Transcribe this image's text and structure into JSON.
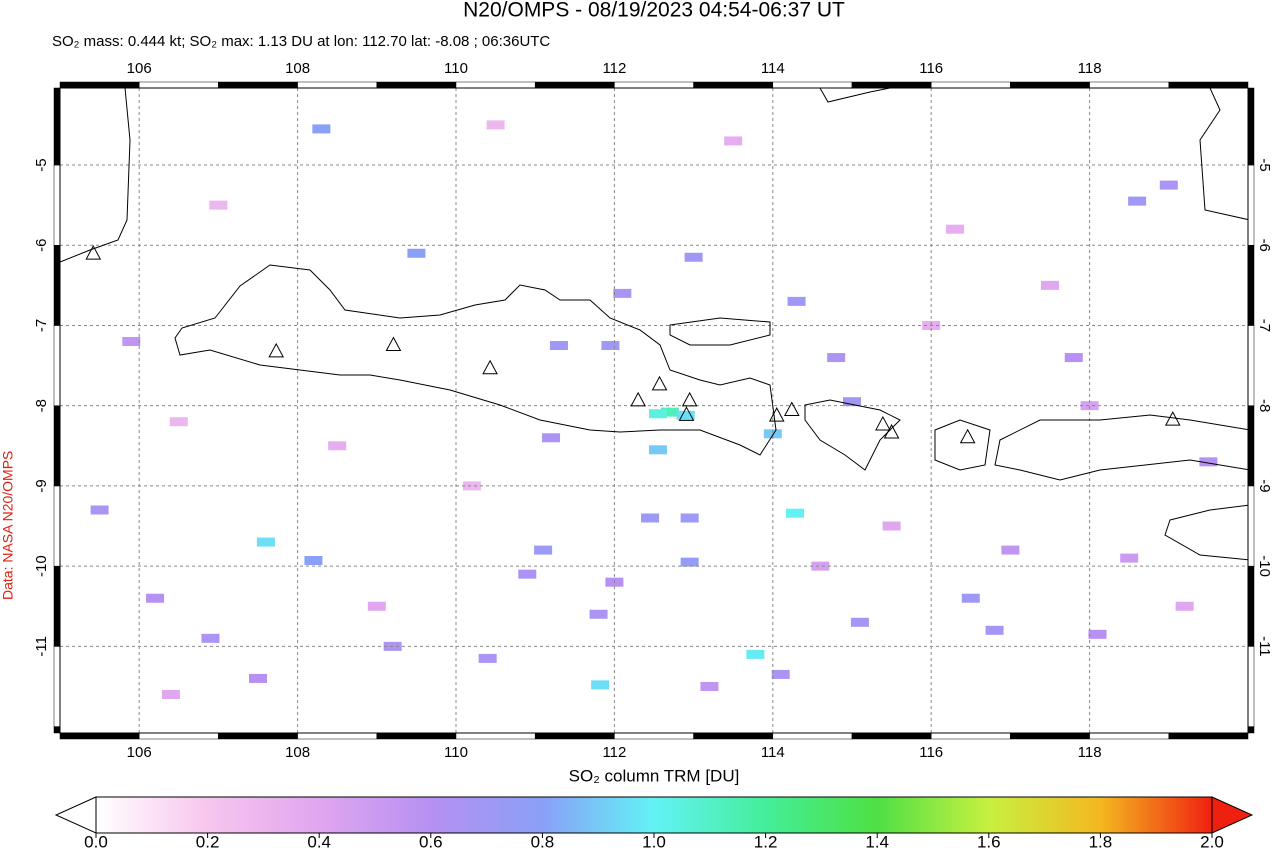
{
  "chart_data": {
    "type": "map",
    "title": "N20/OMPS - 08/19/2023 04:54-06:37 UT",
    "subtitle": "SO₂ mass: 0.444 kt; SO₂ max: 1.13 DU at lon: 112.70 lat: -8.08 ; 06:36UTC",
    "credit": "Data: NASA N20/OMPS",
    "colorbar_label": "SO₂ column TRM [DU]",
    "xlim": [
      105,
      120
    ],
    "ylim": [
      -12.08,
      -4.04
    ],
    "xticks": [
      106,
      108,
      110,
      112,
      114,
      116,
      118
    ],
    "yticks": [
      -5,
      -6,
      -7,
      -8,
      -9,
      -10,
      -11
    ],
    "grid": true,
    "clim": [
      0,
      2
    ],
    "colormap": [
      "#ffffff",
      "#f7c6ee",
      "#e0a6f0",
      "#b690f2",
      "#8aa0f7",
      "#62f2f6",
      "#44ee99",
      "#4ee044",
      "#c8f040",
      "#f4b820",
      "#f02010"
    ],
    "cticks": [
      {
        "value": 0,
        "label": "0.0"
      },
      {
        "value": 0.2,
        "label": "0.2"
      },
      {
        "value": 0.4,
        "label": "0.4"
      },
      {
        "value": 0.6,
        "label": "0.6"
      },
      {
        "value": 0.8,
        "label": "0.8"
      },
      {
        "value": 1,
        "label": "1.0"
      },
      {
        "value": 1.2,
        "label": "1.2"
      },
      {
        "value": 1.4,
        "label": "1.4"
      },
      {
        "value": 1.6,
        "label": "1.6"
      },
      {
        "value": 1.8,
        "label": "1.8"
      },
      {
        "value": 2,
        "label": "2.0"
      }
    ],
    "volcanoes": {
      "lon": [
        105.42,
        107.73,
        109.21,
        110.43,
        112.3,
        112.57,
        112.95,
        112.91,
        114.05,
        114.24,
        115.39,
        115.5,
        116.46,
        119.05
      ],
      "lat": [
        -6.11,
        -7.33,
        -7.25,
        -7.54,
        -7.94,
        -7.74,
        -7.94,
        -8.12,
        -8.13,
        -8.06,
        -8.24,
        -8.34,
        -8.4,
        -8.18
      ]
    },
    "pixels": {
      "lon": [
        114.28,
        112.7,
        112.9,
        112.55,
        113.78,
        111.82,
        107.6,
        112.55,
        114.0,
        108.3,
        109.5,
        108.2,
        112.95,
        112.45,
        111.1,
        112.95,
        111.2,
        111.3,
        111.95,
        113.0,
        114.3,
        115.0,
        114.8,
        118.6,
        119.0,
        117.8,
        116.5,
        115.1,
        116.8,
        118.1,
        114.1,
        110.4,
        109.2,
        106.2,
        106.9,
        105.5,
        107.5,
        110.9,
        112.1,
        105.9,
        112.0,
        111.8,
        113.2,
        117.0,
        118.5,
        119.5,
        106.5,
        108.5,
        110.2,
        117.5,
        116.3,
        119.2,
        107.0,
        110.5,
        113.5,
        115.5,
        118.0,
        109.0,
        106.4,
        114.6,
        116.0
      ],
      "lat": [
        -9.34,
        -8.08,
        -8.12,
        -8.1,
        -11.1,
        -11.48,
        -9.7,
        -8.55,
        -8.35,
        -4.55,
        -6.1,
        -9.93,
        -9.4,
        -9.4,
        -9.8,
        -9.95,
        -8.4,
        -7.25,
        -7.25,
        -6.15,
        -6.7,
        -7.95,
        -7.4,
        -5.45,
        -5.25,
        -7.4,
        -10.4,
        -10.7,
        -10.8,
        -10.85,
        -11.35,
        -11.15,
        -11.0,
        -10.4,
        -10.9,
        -9.3,
        -11.4,
        -10.1,
        -6.6,
        -7.2,
        -10.2,
        -10.6,
        -11.5,
        -9.8,
        -9.9,
        -8.7,
        -8.2,
        -8.5,
        -9.0,
        -6.5,
        -5.8,
        -10.5,
        -5.5,
        -4.5,
        -4.7,
        -9.5,
        -8.0,
        -10.5,
        -11.6,
        -10.0,
        -7.0
      ],
      "values": [
        1.0,
        1.13,
        0.95,
        1.05,
        0.98,
        0.95,
        0.95,
        0.9,
        0.9,
        0.8,
        0.8,
        0.8,
        0.72,
        0.72,
        0.72,
        0.75,
        0.65,
        0.7,
        0.7,
        0.7,
        0.7,
        0.7,
        0.65,
        0.7,
        0.65,
        0.6,
        0.7,
        0.68,
        0.68,
        0.6,
        0.65,
        0.65,
        0.65,
        0.6,
        0.65,
        0.65,
        0.6,
        0.65,
        0.65,
        0.55,
        0.6,
        0.65,
        0.55,
        0.55,
        0.5,
        0.6,
        0.3,
        0.35,
        0.3,
        0.4,
        0.35,
        0.4,
        0.3,
        0.3,
        0.35,
        0.4,
        0.45,
        0.4,
        0.4,
        0.45,
        0.35
      ]
    }
  }
}
